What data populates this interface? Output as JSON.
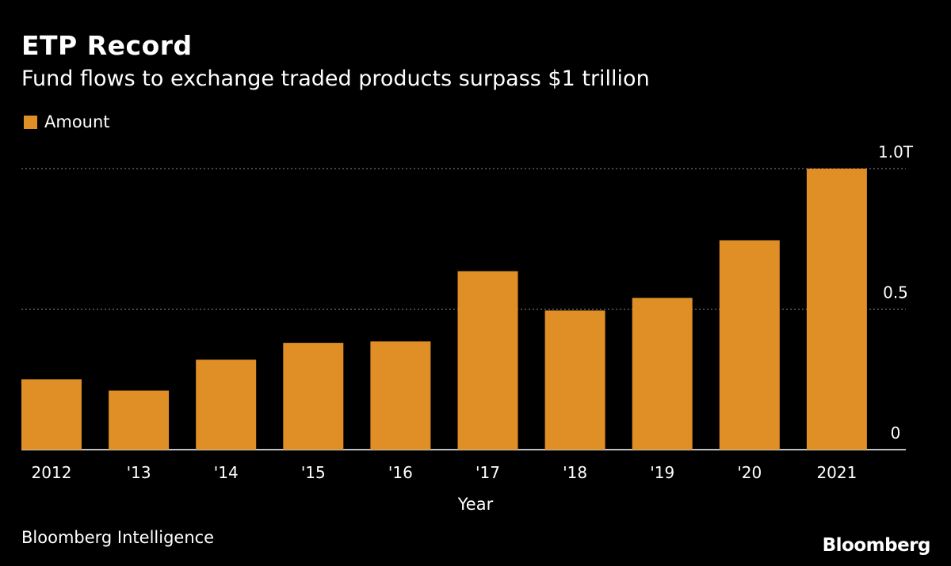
{
  "header": {
    "title": "ETP Record",
    "subtitle": "Fund flows to exchange traded products surpass $1 trillion"
  },
  "footer": {
    "source": "Bloomberg Intelligence",
    "brand": "Bloomberg"
  },
  "colors": {
    "background": "#000000",
    "bar": "#e08e26",
    "text": "#ffffff",
    "grid": "#8a8a8a"
  },
  "chart_data": {
    "type": "bar",
    "categories": [
      "2012",
      "'13",
      "'14",
      "'15",
      "'16",
      "'17",
      "'18",
      "'19",
      "'20",
      "2021"
    ],
    "series": [
      {
        "name": "Amount",
        "values": [
          0.25,
          0.21,
          0.32,
          0.38,
          0.385,
          0.635,
          0.495,
          0.54,
          0.745,
          1.0
        ]
      }
    ],
    "xlabel": "Year",
    "ylabel": "",
    "ylim": [
      0,
      1.0
    ],
    "yticks": [
      {
        "value": 0,
        "label": "0"
      },
      {
        "value": 0.5,
        "label": "0.5"
      },
      {
        "value": 1.0,
        "label": "1.0T"
      }
    ],
    "grid": true,
    "legend": "top-left"
  }
}
